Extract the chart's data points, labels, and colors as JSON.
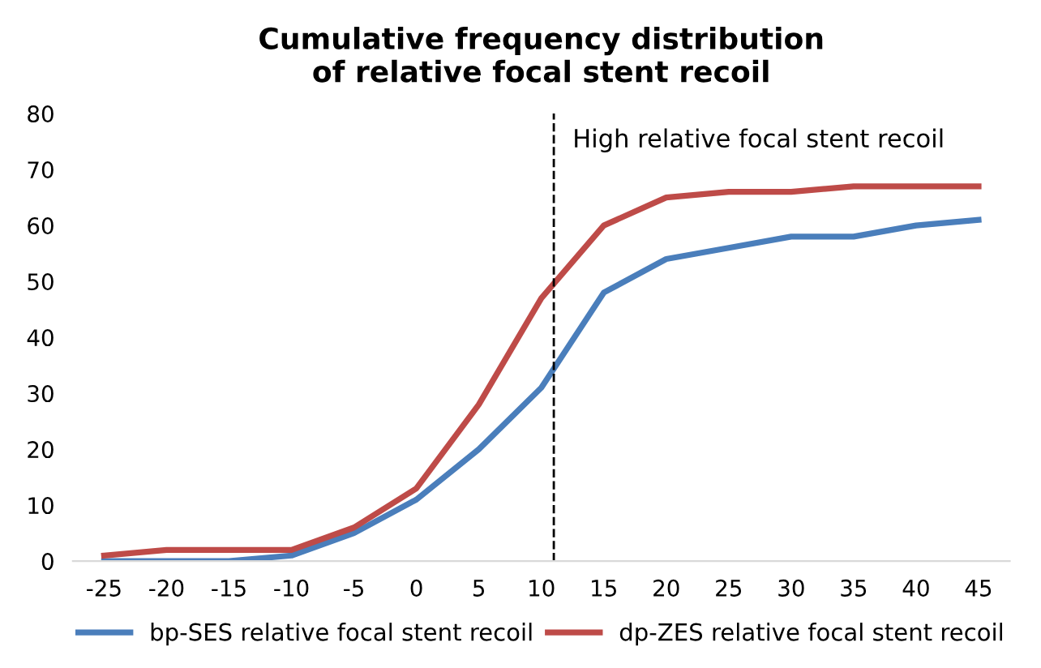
{
  "chart_data": {
    "type": "line",
    "title": "Cumulative frequency distribution\nof relative focal stent recoil",
    "x": [
      -25,
      -20,
      -15,
      -10,
      -5,
      0,
      5,
      10,
      15,
      20,
      25,
      30,
      35,
      40,
      45
    ],
    "series": [
      {
        "name": "bp-SES relative focal stent recoil",
        "color": "#4a7ebb",
        "values": [
          0,
          0,
          0,
          1,
          5,
          11,
          20,
          31,
          48,
          54,
          56,
          58,
          58,
          60,
          61
        ]
      },
      {
        "name": "dp-ZES relative focal stent recoil",
        "color": "#be4b48",
        "values": [
          1,
          2,
          2,
          2,
          6,
          13,
          28,
          47,
          60,
          65,
          66,
          66,
          67,
          67,
          67
        ]
      }
    ],
    "xlim": [
      -27.5,
      47.5
    ],
    "xticks": [
      -25,
      -20,
      -15,
      -10,
      -5,
      0,
      5,
      10,
      15,
      20,
      25,
      30,
      35,
      40,
      45
    ],
    "ylim": [
      0,
      80
    ],
    "yticks": [
      0,
      10,
      20,
      30,
      40,
      50,
      60,
      70,
      80
    ],
    "ref_lines": [
      {
        "axis": "x",
        "value": 11,
        "label": "High relative focal stent recoil",
        "color": "#000000",
        "line_style": "dashed"
      }
    ],
    "grid": false,
    "legend": "bottom",
    "marker": "none",
    "line_style": "solid"
  }
}
